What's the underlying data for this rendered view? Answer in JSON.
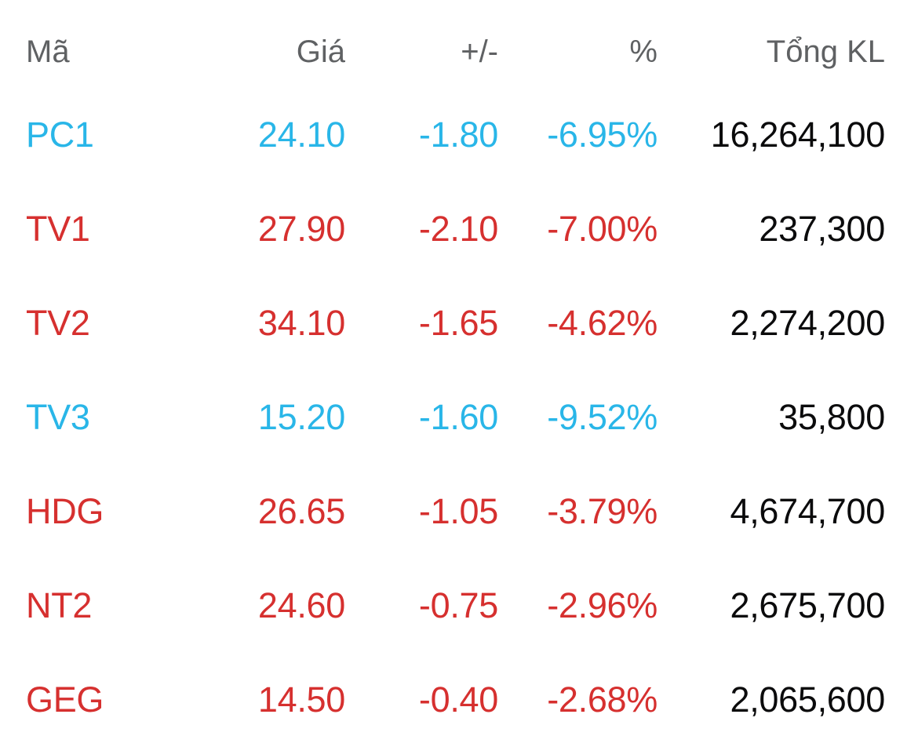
{
  "colors": {
    "floor": "#29b6e8",
    "down": "#d6302f",
    "neutral": "#0b0b0c",
    "header": "#5f6163"
  },
  "table": {
    "columns": [
      {
        "id": "symbol",
        "label": "Mã",
        "align": "left"
      },
      {
        "id": "price",
        "label": "Giá",
        "align": "right"
      },
      {
        "id": "change",
        "label": "+/-",
        "align": "right"
      },
      {
        "id": "percent",
        "label": "%",
        "align": "right"
      },
      {
        "id": "volume",
        "label": "Tổng KL",
        "align": "right"
      }
    ],
    "rows": [
      {
        "symbol": "PC1",
        "price": "24.10",
        "change": "-1.80",
        "percent": "-6.95%",
        "volume": "16,264,100",
        "tone": "floor"
      },
      {
        "symbol": "TV1",
        "price": "27.90",
        "change": "-2.10",
        "percent": "-7.00%",
        "volume": "237,300",
        "tone": "down"
      },
      {
        "symbol": "TV2",
        "price": "34.10",
        "change": "-1.65",
        "percent": "-4.62%",
        "volume": "2,274,200",
        "tone": "down"
      },
      {
        "symbol": "TV3",
        "price": "15.20",
        "change": "-1.60",
        "percent": "-9.52%",
        "volume": "35,800",
        "tone": "floor"
      },
      {
        "symbol": "HDG",
        "price": "26.65",
        "change": "-1.05",
        "percent": "-3.79%",
        "volume": "4,674,700",
        "tone": "down"
      },
      {
        "symbol": "NT2",
        "price": "24.60",
        "change": "-0.75",
        "percent": "-2.96%",
        "volume": "2,675,700",
        "tone": "down"
      },
      {
        "symbol": "GEG",
        "price": "14.50",
        "change": "-0.40",
        "percent": "-2.68%",
        "volume": "2,065,600",
        "tone": "down"
      }
    ]
  }
}
